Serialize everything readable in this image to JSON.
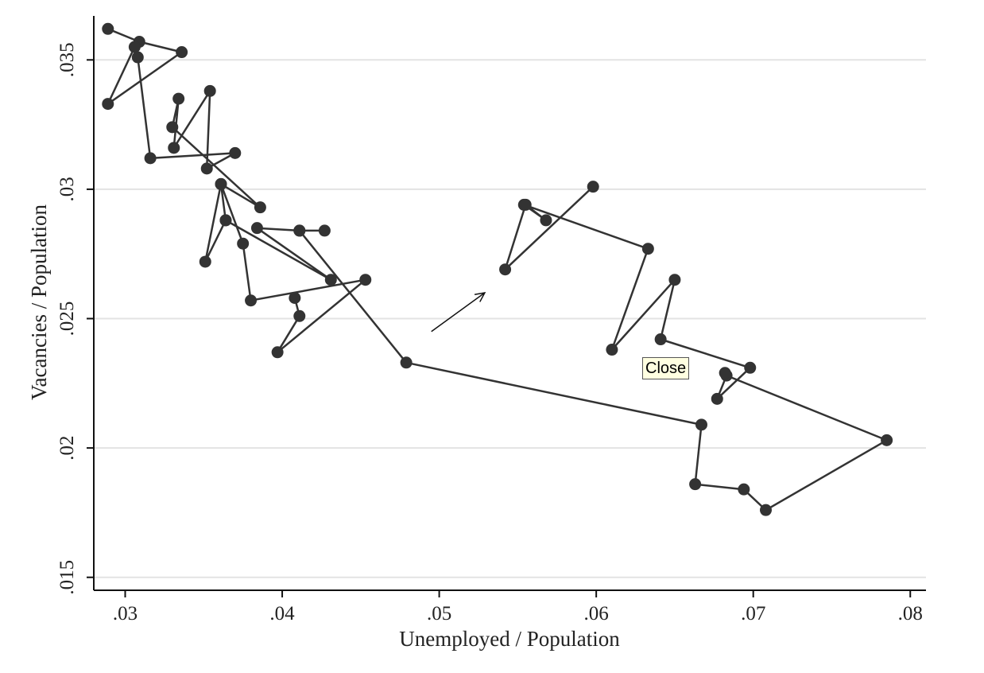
{
  "chart_data": {
    "type": "line",
    "xlabel": "Unemployed / Population",
    "ylabel": "Vacancies / Population",
    "xlim": [
      0.028,
      0.081
    ],
    "ylim": [
      0.0145,
      0.0367
    ],
    "x_ticks": [
      0.03,
      0.04,
      0.05,
      0.06,
      0.07,
      0.08
    ],
    "x_tick_labels": [
      ".03",
      ".04",
      ".05",
      ".06",
      ".07",
      ".08"
    ],
    "y_ticks": [
      0.015,
      0.02,
      0.025,
      0.03,
      0.035
    ],
    "y_tick_labels": [
      ".015",
      ".02",
      ".025",
      ".03",
      ".035"
    ],
    "grid": "horizontal",
    "annotation": "arrow pointing up-right",
    "series": [
      {
        "marker": "circle",
        "color": "#333333",
        "segments": [
          {
            "points": [
              [
                0.0289,
                0.0362
              ],
              [
                0.0309,
                0.0357
              ],
              [
                0.0336,
                0.0353
              ],
              [
                0.0289,
                0.0333
              ],
              [
                0.0306,
                0.0355
              ],
              [
                0.0308,
                0.0351
              ],
              [
                0.0316,
                0.0312
              ],
              [
                0.037,
                0.0314
              ],
              [
                0.0352,
                0.0308
              ],
              [
                0.0354,
                0.0338
              ],
              [
                0.0331,
                0.0316
              ],
              [
                0.0334,
                0.0335
              ],
              [
                0.033,
                0.0324
              ],
              [
                0.0386,
                0.0293
              ],
              [
                0.0361,
                0.0302
              ],
              [
                0.0364,
                0.0288
              ],
              [
                0.0431,
                0.0265
              ],
              [
                0.0384,
                0.0285
              ],
              [
                0.0411,
                0.0284
              ],
              [
                0.0427,
                0.0284
              ],
              [
                0.0411,
                0.0284
              ],
              [
                0.0479,
                0.0233
              ],
              [
                0.0667,
                0.0209
              ],
              [
                0.0663,
                0.0186
              ],
              [
                0.0694,
                0.0184
              ],
              [
                0.0708,
                0.0176
              ],
              [
                0.0785,
                0.0203
              ],
              [
                0.0683,
                0.0228
              ],
              [
                0.0677,
                0.0219
              ],
              [
                0.0698,
                0.0231
              ],
              [
                0.0641,
                0.0242
              ],
              [
                0.065,
                0.0265
              ],
              [
                0.061,
                0.0238
              ],
              [
                0.0633,
                0.0277
              ],
              [
                0.0554,
                0.0294
              ],
              [
                0.0568,
                0.0288
              ],
              [
                0.0555,
                0.0294
              ],
              [
                0.0542,
                0.0269
              ],
              [
                0.0598,
                0.0301
              ]
            ]
          },
          {
            "points": [
              [
                0.0364,
                0.0288
              ],
              [
                0.0351,
                0.0272
              ],
              [
                0.0361,
                0.0302
              ],
              [
                0.0375,
                0.0279
              ],
              [
                0.038,
                0.0257
              ],
              [
                0.0453,
                0.0265
              ],
              [
                0.0397,
                0.0237
              ],
              [
                0.0411,
                0.0251
              ],
              [
                0.0408,
                0.0258
              ]
            ]
          },
          {
            "points": [
              [
                0.0682,
                0.0229
              ]
            ]
          }
        ]
      }
    ]
  },
  "tooltip": {
    "text": "Close"
  }
}
